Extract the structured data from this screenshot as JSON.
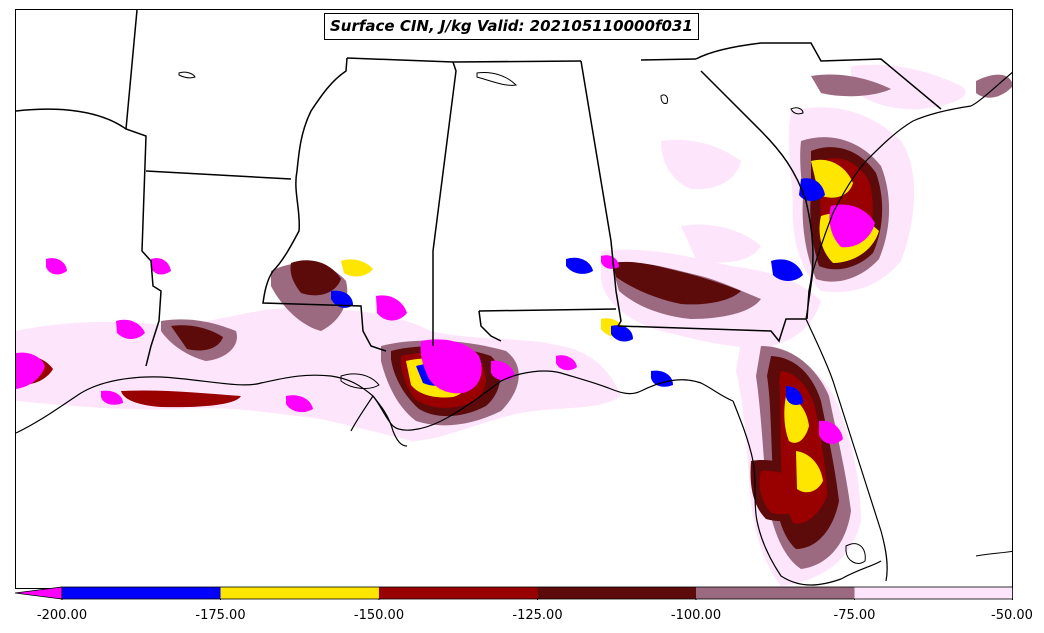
{
  "title": "Surface CIN, J/kg Valid: 202105110000f031",
  "colorbar": {
    "ticks": [
      "-200.00",
      "-175.00",
      "-150.00",
      "-125.00",
      "-100.00",
      "-75.00",
      "-50.00"
    ],
    "bins": [
      {
        "from": -200,
        "to": -175,
        "color": "#0000ff"
      },
      {
        "from": -175,
        "to": -150,
        "color": "#ffe600"
      },
      {
        "from": -150,
        "to": -125,
        "color": "#990000"
      },
      {
        "from": -125,
        "to": -100,
        "color": "#5c0a0a"
      },
      {
        "from": -100,
        "to": -75,
        "color": "#9b6a80"
      },
      {
        "from": -75,
        "to": -50,
        "color": "#fde6fb"
      }
    ],
    "under_color": "#ff00ff",
    "extend": "min"
  },
  "colors": {
    "magenta": "#ff00ff",
    "blue": "#0000ff",
    "yellow": "#ffe600",
    "red": "#990000",
    "dark_red": "#5c0a0a",
    "mauve": "#9b6a80",
    "pink": "#fde6fb",
    "land": "#ffffff",
    "borders": "#000000"
  }
}
